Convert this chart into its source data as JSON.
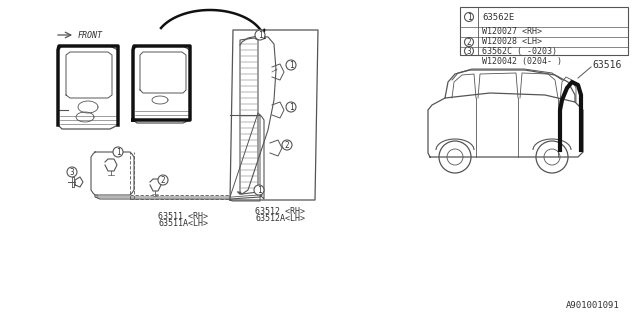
{
  "background_color": "#ffffff",
  "part_number_bottom": "A901001091",
  "legend_items": [
    {
      "num": 1,
      "lines": [
        "63562E"
      ]
    },
    {
      "num": 2,
      "lines": [
        "W120027 <RH>",
        "W120028 <LH>"
      ]
    },
    {
      "num": 3,
      "lines": [
        "63562C ( -0203)",
        "W120042 (0204- )"
      ]
    }
  ],
  "label_63511": "63511 <RH>",
  "label_63511a": "63511A<LH>",
  "label_63512": "63512 <RH>",
  "label_63512a": "63512A<LH>",
  "label_63516": "63516",
  "label_front": "FRONT",
  "line_color": "#555555",
  "thick_color": "#111111",
  "text_color": "#333333"
}
